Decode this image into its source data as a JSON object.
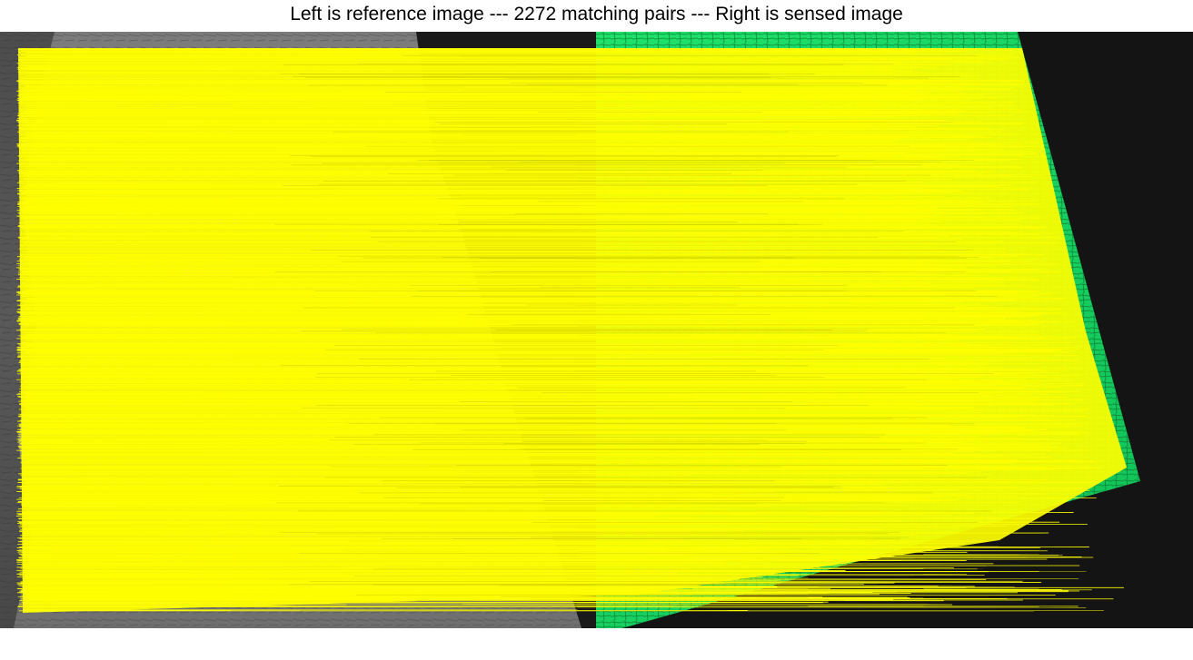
{
  "title": "Left is reference image --- 2272 matching pairs --- Right is sensed image",
  "matching_pairs": 2272,
  "panels": {
    "left": "reference image",
    "right": "sensed image"
  },
  "colors": {
    "match_line": "#ffff00",
    "sensed_image_tint": "#19e066",
    "reference_image_tone": "#8a8a8a",
    "background_dark": "#141414",
    "title_text": "#000000"
  }
}
